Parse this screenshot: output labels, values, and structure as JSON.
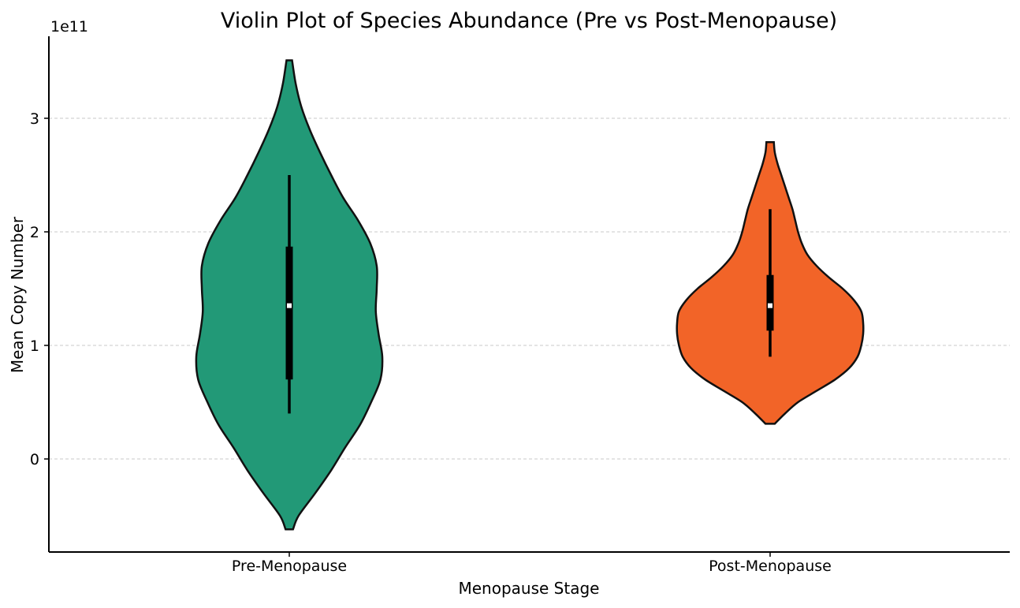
{
  "chart_data": {
    "type": "violin",
    "title": "Violin Plot of Species Abundance (Pre vs Post-Menopause)",
    "xlabel": "Menopause Stage",
    "ylabel": "Mean Copy Number",
    "y_offset_label": "1e11",
    "ylim": [
      -0.82,
      3.7
    ],
    "yticks": [
      0,
      1,
      2,
      3
    ],
    "ytick_labels": [
      "0",
      "1",
      "2",
      "3"
    ],
    "grid": "y, dashed",
    "categories": [
      "Pre-Menopause",
      "Post-Menopause"
    ],
    "series": [
      {
        "category": "Pre-Menopause",
        "color": "#229977",
        "kde_range": [
          -0.62,
          3.51
        ],
        "whisker": [
          0.4,
          2.5
        ],
        "iqr": [
          0.7,
          1.87
        ],
        "median": 1.35,
        "density_profile": [
          [
            -0.62,
            0.04
          ],
          [
            -0.5,
            0.1
          ],
          [
            -0.3,
            0.28
          ],
          [
            -0.1,
            0.45
          ],
          [
            0.1,
            0.6
          ],
          [
            0.3,
            0.76
          ],
          [
            0.5,
            0.88
          ],
          [
            0.7,
            0.98
          ],
          [
            0.9,
            1.0
          ],
          [
            1.1,
            0.96
          ],
          [
            1.3,
            0.93
          ],
          [
            1.5,
            0.94
          ],
          [
            1.7,
            0.94
          ],
          [
            1.9,
            0.87
          ],
          [
            2.1,
            0.74
          ],
          [
            2.3,
            0.58
          ],
          [
            2.5,
            0.45
          ],
          [
            2.7,
            0.33
          ],
          [
            2.9,
            0.22
          ],
          [
            3.1,
            0.13
          ],
          [
            3.3,
            0.07
          ],
          [
            3.51,
            0.03
          ]
        ]
      },
      {
        "category": "Post-Menopause",
        "color": "#f26428",
        "kde_range": [
          0.31,
          2.79
        ],
        "whisker": [
          0.9,
          2.2
        ],
        "iqr": [
          1.13,
          1.62
        ],
        "median": 1.35,
        "density_profile": [
          [
            0.31,
            0.05
          ],
          [
            0.4,
            0.16
          ],
          [
            0.5,
            0.3
          ],
          [
            0.6,
            0.5
          ],
          [
            0.7,
            0.7
          ],
          [
            0.8,
            0.85
          ],
          [
            0.9,
            0.94
          ],
          [
            1.0,
            0.98
          ],
          [
            1.1,
            1.0
          ],
          [
            1.2,
            1.0
          ],
          [
            1.3,
            0.98
          ],
          [
            1.4,
            0.9
          ],
          [
            1.5,
            0.78
          ],
          [
            1.6,
            0.63
          ],
          [
            1.7,
            0.5
          ],
          [
            1.8,
            0.4
          ],
          [
            1.9,
            0.34
          ],
          [
            2.0,
            0.3
          ],
          [
            2.1,
            0.27
          ],
          [
            2.2,
            0.24
          ],
          [
            2.3,
            0.2
          ],
          [
            2.4,
            0.16
          ],
          [
            2.5,
            0.12
          ],
          [
            2.6,
            0.08
          ],
          [
            2.7,
            0.05
          ],
          [
            2.79,
            0.04
          ]
        ]
      }
    ]
  }
}
